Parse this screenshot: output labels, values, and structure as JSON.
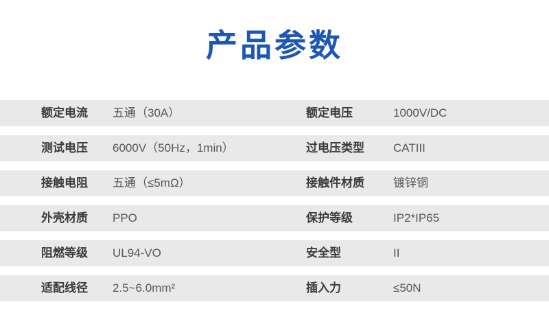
{
  "page": {
    "title": "产品参数"
  },
  "colors": {
    "title_blue": "#1d57b4",
    "row_background": "#e9e9e9",
    "label_text": "#3b3b3b",
    "value_text": "#585858"
  },
  "table": {
    "rows": [
      {
        "left": {
          "label": "额定电流",
          "value": "五通（30A）"
        },
        "right": {
          "label": "额定电压",
          "value": "1000V/DC"
        }
      },
      {
        "left": {
          "label": "测试电压",
          "value": "6000V（50Hz，1min）"
        },
        "right": {
          "label": "过电压类型",
          "value": "CATIII"
        }
      },
      {
        "left": {
          "label": "接触电阻",
          "value": "五通（≤5mΩ）"
        },
        "right": {
          "label": "接触件材质",
          "value": "镀锌铜"
        }
      },
      {
        "left": {
          "label": "外壳材质",
          "value": "PPO"
        },
        "right": {
          "label": "保护等级",
          "value": "IP2*IP65"
        }
      },
      {
        "left": {
          "label": "阻燃等级",
          "value": "UL94-VO"
        },
        "right": {
          "label": "安全型",
          "value": "II"
        }
      },
      {
        "left": {
          "label": "适配线径",
          "value": "2.5~6.0mm²"
        },
        "right": {
          "label": "插入力",
          "value": "≤50N"
        }
      }
    ]
  }
}
